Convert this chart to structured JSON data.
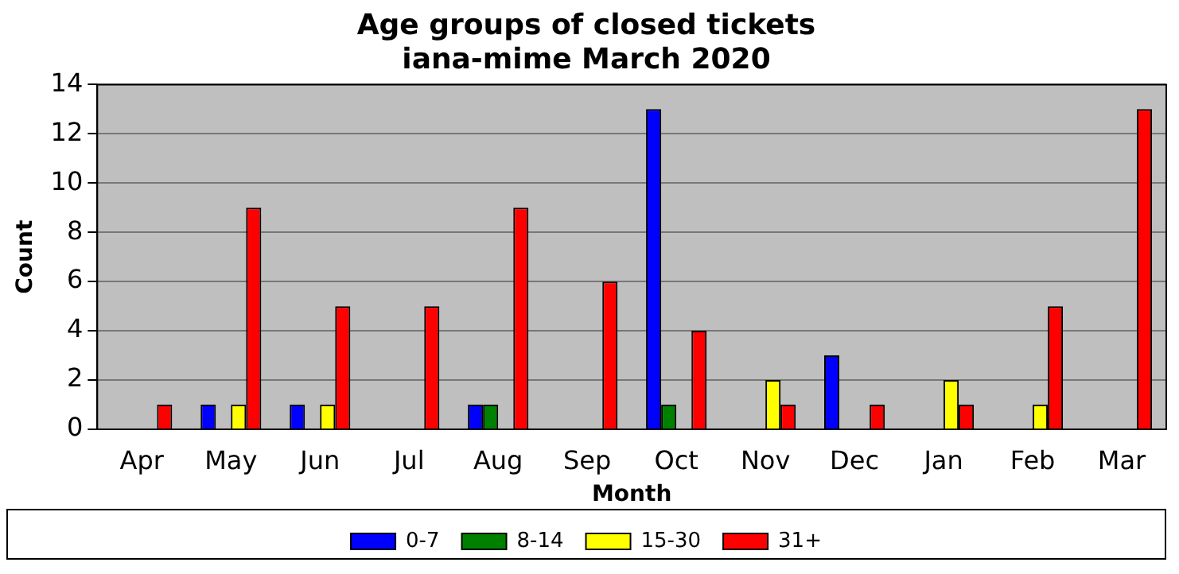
{
  "chart_data": {
    "type": "bar",
    "title": "Age groups of closed tickets",
    "subtitle": "iana-mime March 2020",
    "xlabel": "Month",
    "ylabel": "Count",
    "categories": [
      "Apr",
      "May",
      "Jun",
      "Jul",
      "Aug",
      "Sep",
      "Oct",
      "Nov",
      "Dec",
      "Jan",
      "Feb",
      "Mar"
    ],
    "series": [
      {
        "name": "0-7",
        "color": "#0000ff",
        "values": [
          0,
          1,
          1,
          0,
          1,
          0,
          13,
          0,
          3,
          0,
          0,
          0
        ]
      },
      {
        "name": "8-14",
        "color": "#008000",
        "values": [
          0,
          0,
          0,
          0,
          1,
          0,
          1,
          0,
          0,
          0,
          0,
          0
        ]
      },
      {
        "name": "15-30",
        "color": "#ffff00",
        "values": [
          0,
          1,
          1,
          0,
          0,
          0,
          0,
          2,
          0,
          2,
          1,
          0
        ]
      },
      {
        "name": "31+",
        "color": "#ff0000",
        "values": [
          1,
          9,
          5,
          5,
          9,
          6,
          4,
          1,
          1,
          1,
          5,
          13
        ]
      }
    ],
    "ylim": [
      0,
      14
    ],
    "yticks": [
      0,
      2,
      4,
      6,
      8,
      10,
      12,
      14
    ],
    "grid": "y",
    "legend": "bottom"
  }
}
